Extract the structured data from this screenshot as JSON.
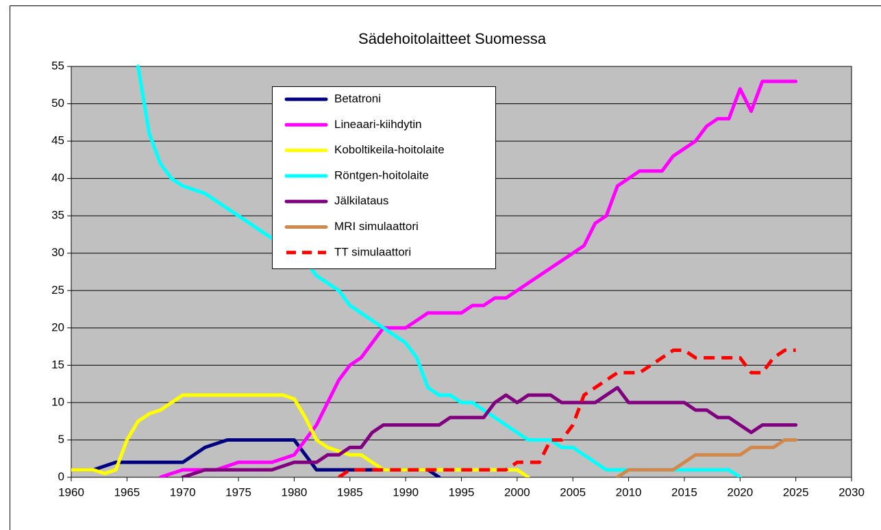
{
  "chart_data": {
    "type": "line",
    "title": "Sädehoitolaitteet Suomessa",
    "x": [
      1960,
      1961,
      1962,
      1963,
      1964,
      1965,
      1966,
      1967,
      1968,
      1969,
      1970,
      1971,
      1972,
      1973,
      1974,
      1975,
      1976,
      1977,
      1978,
      1979,
      1980,
      1981,
      1982,
      1983,
      1984,
      1985,
      1986,
      1987,
      1988,
      1989,
      1990,
      1991,
      1992,
      1993,
      1994,
      1995,
      1996,
      1997,
      1998,
      1999,
      2000,
      2001,
      2002,
      2003,
      2004,
      2005,
      2006,
      2007,
      2008,
      2009,
      2010,
      2011,
      2012,
      2013,
      2014,
      2015,
      2016,
      2017,
      2018,
      2019,
      2020,
      2021,
      2022,
      2023,
      2024,
      2025
    ],
    "xlim": [
      1960,
      2030
    ],
    "xticks": [
      1960,
      1965,
      1970,
      1975,
      1980,
      1985,
      1990,
      1995,
      2000,
      2005,
      2010,
      2015,
      2020,
      2025,
      2030
    ],
    "ylim": [
      0,
      55
    ],
    "yticks": [
      0,
      5,
      10,
      15,
      20,
      25,
      30,
      35,
      40,
      45,
      50,
      55
    ],
    "grid": true,
    "series": [
      {
        "name": "Betatroni",
        "color": "#000080",
        "values": [
          1,
          1,
          1,
          1.5,
          2,
          2,
          2,
          2,
          2,
          2,
          2,
          3,
          4,
          4.5,
          5,
          5,
          5,
          5,
          5,
          5,
          5,
          3,
          1,
          1,
          1,
          1,
          1,
          1,
          1,
          1,
          1,
          1,
          1,
          0,
          null,
          null,
          null,
          null,
          null,
          null,
          null,
          null,
          null,
          null,
          null,
          null,
          null,
          null,
          null,
          null,
          null,
          null,
          null,
          null,
          null,
          null,
          null,
          null,
          null,
          null,
          null,
          null,
          null,
          null,
          null,
          null
        ]
      },
      {
        "name": "Lineaari-kiihdytin",
        "color": "#ff00ff",
        "values": [
          null,
          null,
          null,
          null,
          null,
          null,
          null,
          null,
          0,
          0.5,
          1,
          1,
          1,
          1,
          1.5,
          2,
          2,
          2,
          2,
          2.5,
          3,
          5,
          7,
          10,
          13,
          15,
          16,
          18,
          20,
          20,
          20,
          21,
          22,
          22,
          22,
          22,
          23,
          23,
          24,
          24,
          25,
          26,
          27,
          28,
          29,
          30,
          31,
          34,
          35,
          39,
          40,
          41,
          41,
          41,
          43,
          44,
          45,
          47,
          48,
          48,
          52,
          49,
          53,
          53,
          53,
          53
        ]
      },
      {
        "name": "Koboltikeila-hoitolaite",
        "color": "#ffff00",
        "values": [
          1,
          1,
          1,
          0.5,
          1,
          5,
          7.5,
          8.5,
          9,
          10,
          11,
          11,
          11,
          11,
          11,
          11,
          11,
          11,
          11,
          11,
          10.5,
          8,
          5,
          4,
          3.5,
          3,
          3,
          2,
          1,
          1,
          1,
          1,
          1,
          1,
          1,
          1,
          1,
          1,
          1,
          1,
          1,
          0,
          null,
          null,
          null,
          null,
          null,
          null,
          null,
          null,
          null,
          null,
          null,
          null,
          null,
          null,
          null,
          null,
          null,
          null,
          null,
          null,
          null,
          null,
          null,
          null
        ]
      },
      {
        "name": "Röntgen-hoitolaite",
        "color": "#00ffff",
        "values": [
          null,
          null,
          null,
          null,
          null,
          null,
          55,
          46,
          42,
          40,
          39,
          38.5,
          38,
          37,
          36,
          35,
          34,
          33,
          32,
          31,
          30,
          29,
          27,
          26,
          25,
          23,
          22,
          21,
          20,
          19,
          18,
          16,
          12,
          11,
          11,
          10,
          10,
          9,
          8,
          7,
          6,
          5,
          5,
          5,
          4,
          4,
          3,
          2,
          1,
          1,
          1,
          1,
          1,
          1,
          1,
          1,
          1,
          1,
          1,
          1,
          0,
          null,
          null,
          null,
          null,
          null
        ]
      },
      {
        "name": "Jälkilataus",
        "color": "#800080",
        "values": [
          null,
          null,
          null,
          null,
          null,
          null,
          null,
          null,
          null,
          null,
          0,
          0.5,
          1,
          1,
          1,
          1,
          1,
          1,
          1,
          1.5,
          2,
          2,
          2,
          3,
          3,
          4,
          4,
          6,
          7,
          7,
          7,
          7,
          7,
          7,
          8,
          8,
          8,
          8,
          10,
          11,
          10,
          11,
          11,
          11,
          10,
          10,
          10,
          10,
          11,
          12,
          10,
          10,
          10,
          10,
          10,
          10,
          9,
          9,
          8,
          8,
          7,
          6,
          7,
          7,
          7,
          7
        ]
      },
      {
        "name": "MRI simulaattori",
        "color": "#d2874b",
        "values": [
          null,
          null,
          null,
          null,
          null,
          null,
          null,
          null,
          null,
          null,
          null,
          null,
          null,
          null,
          null,
          null,
          null,
          null,
          null,
          null,
          null,
          null,
          null,
          null,
          null,
          null,
          null,
          null,
          null,
          null,
          null,
          null,
          null,
          null,
          null,
          null,
          null,
          null,
          null,
          null,
          null,
          null,
          null,
          null,
          null,
          null,
          null,
          null,
          null,
          0,
          1,
          1,
          1,
          1,
          1,
          2,
          3,
          3,
          3,
          3,
          3,
          4,
          4,
          4,
          5,
          5
        ]
      },
      {
        "name": "TT simulaattori",
        "color": "#ff0000",
        "dashed": true,
        "values": [
          null,
          null,
          null,
          null,
          null,
          null,
          null,
          null,
          null,
          null,
          null,
          null,
          null,
          null,
          null,
          null,
          null,
          null,
          null,
          null,
          null,
          null,
          null,
          null,
          0,
          1,
          1,
          1,
          1,
          1,
          1,
          1,
          1,
          1,
          1,
          1,
          1,
          1,
          1,
          1,
          2,
          2,
          2,
          5,
          5,
          7,
          11,
          12,
          13,
          14,
          14,
          14,
          15,
          16,
          17,
          17,
          16,
          16,
          16,
          16,
          16,
          14,
          14,
          16,
          17,
          17
        ]
      }
    ]
  }
}
